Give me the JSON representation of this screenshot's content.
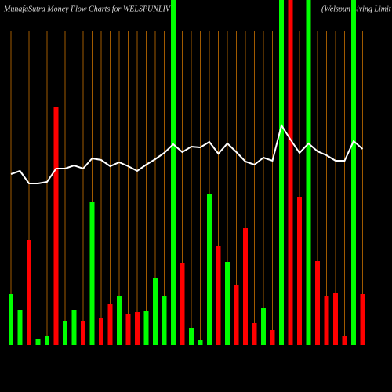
{
  "chart_data": {
    "type": "bar",
    "title": "MunafaSutra  Money Flow  Charts for WELSPUNLIV",
    "subtitle": "(Welspun Living Limit",
    "categories": [
      null,
      null,
      null,
      null,
      null,
      null,
      null,
      null,
      null,
      null,
      null,
      null,
      null,
      null,
      null,
      null,
      null,
      null,
      null,
      null,
      null,
      null,
      null,
      null,
      null,
      null,
      null,
      null,
      null,
      null,
      null,
      null,
      null,
      null,
      null,
      null,
      null,
      null,
      null,
      null
    ],
    "values": [
      65,
      45,
      134,
      7,
      12,
      303,
      30,
      45,
      30,
      182,
      34,
      52,
      63,
      39,
      42,
      43,
      86,
      63,
      440,
      105,
      22,
      6,
      192,
      126,
      106,
      77,
      149,
      28,
      47,
      19,
      440,
      440,
      189,
      440,
      107,
      63,
      66,
      12,
      440,
      65
    ],
    "colors": [
      "#00ff00",
      "#00ff00",
      "#ff0000",
      "#00ff00",
      "#00ff00",
      "#ff0000",
      "#00ff00",
      "#00ff00",
      "#ff0000",
      "#00ff00",
      "#ff0000",
      "#ff0000",
      "#00ff00",
      "#ff0000",
      "#ff0000",
      "#00ff00",
      "#00ff00",
      "#00ff00",
      "#00ff00",
      "#ff0000",
      "#00ff00",
      "#00ff00",
      "#00ff00",
      "#ff0000",
      "#00ff00",
      "#ff0000",
      "#ff0000",
      "#ff0000",
      "#00ff00",
      "#ff0000",
      "#00ff00",
      "#ff0000",
      "#ff0000",
      "#00ff00",
      "#ff0000",
      "#ff0000",
      "#ff0000",
      "#ff0000",
      "#00ff00",
      "#ff0000"
    ],
    "line": {
      "color": "#ffffff",
      "values": [
        218,
        222,
        206,
        206,
        208,
        225,
        225,
        229,
        225,
        238,
        236,
        228,
        233,
        228,
        222,
        230,
        237,
        245,
        256,
        246,
        253,
        252,
        259,
        244,
        257,
        246,
        234,
        230,
        239,
        235,
        280,
        262,
        245,
        257,
        247,
        242,
        235,
        235,
        260,
        250
      ]
    },
    "ylim": [
      0,
      440
    ],
    "grid_color": "#a05a00"
  }
}
